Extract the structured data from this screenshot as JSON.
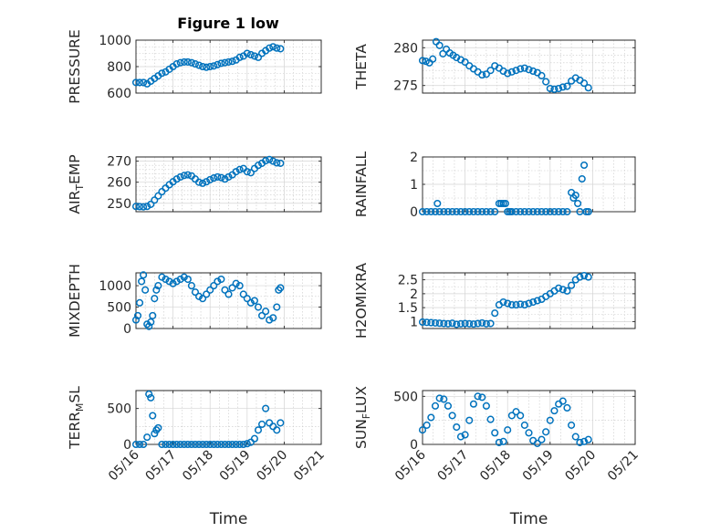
{
  "figure": {
    "title": "Figure 1 low"
  },
  "theme": {
    "marker_color": "#0072BD",
    "axes_color": "#262626"
  },
  "chart_data": [
    {
      "type": "scatter",
      "title": "Figure 1 low",
      "ylabel": "PRESSURE",
      "ylim": [
        600,
        1000
      ],
      "yticks": [
        600,
        800,
        1000
      ],
      "yminor": [
        650,
        700,
        750,
        850,
        900,
        950
      ],
      "xlim": [
        0,
        5
      ],
      "xticks": [
        0,
        1,
        2,
        3,
        4,
        5
      ],
      "xticklabels": [
        "05/16",
        "05/17",
        "05/18",
        "05/19",
        "05/20",
        "05/21"
      ],
      "xlabel": "",
      "grid": true,
      "minor_grid": true,
      "x": [
        0.0,
        0.1,
        0.2,
        0.3,
        0.4,
        0.5,
        0.6,
        0.7,
        0.8,
        0.9,
        1.0,
        1.1,
        1.2,
        1.3,
        1.4,
        1.5,
        1.6,
        1.7,
        1.8,
        1.9,
        2.0,
        2.1,
        2.2,
        2.3,
        2.4,
        2.5,
        2.6,
        2.7,
        2.8,
        2.9,
        3.0,
        3.1,
        3.2,
        3.3,
        3.4,
        3.5,
        3.6,
        3.7,
        3.8,
        3.9
      ],
      "y": [
        680,
        680,
        680,
        670,
        690,
        710,
        730,
        750,
        760,
        780,
        800,
        820,
        830,
        835,
        835,
        830,
        820,
        810,
        800,
        795,
        800,
        805,
        815,
        825,
        830,
        835,
        840,
        850,
        870,
        880,
        900,
        890,
        880,
        870,
        900,
        920,
        940,
        950,
        940,
        935
      ]
    },
    {
      "type": "scatter",
      "ylabel": "THETA",
      "ylim": [
        274,
        281
      ],
      "yticks": [
        275,
        280
      ],
      "yminor": [
        276,
        277,
        278,
        279
      ],
      "xlim": [
        0,
        5
      ],
      "xticks": [
        0,
        1,
        2,
        3,
        4,
        5
      ],
      "xticklabels": [
        "05/16",
        "05/17",
        "05/18",
        "05/19",
        "05/20",
        "05/21"
      ],
      "xlabel": "",
      "grid": true,
      "minor_grid": true,
      "x": [
        0.0,
        0.08,
        0.16,
        0.24,
        0.32,
        0.4,
        0.48,
        0.56,
        0.64,
        0.72,
        0.8,
        0.9,
        1.0,
        1.1,
        1.2,
        1.3,
        1.4,
        1.5,
        1.6,
        1.7,
        1.8,
        1.9,
        2.0,
        2.1,
        2.2,
        2.3,
        2.4,
        2.5,
        2.6,
        2.7,
        2.8,
        2.9,
        3.0,
        3.1,
        3.2,
        3.3,
        3.4,
        3.5,
        3.6,
        3.7,
        3.8,
        3.9
      ],
      "y": [
        278.3,
        278.2,
        278.0,
        278.5,
        280.8,
        280.3,
        279.2,
        279.8,
        279.3,
        279.0,
        278.7,
        278.4,
        278.1,
        277.6,
        277.2,
        276.8,
        276.4,
        276.5,
        277.0,
        277.6,
        277.3,
        276.9,
        276.6,
        276.8,
        277.0,
        277.2,
        277.3,
        277.1,
        276.9,
        276.7,
        276.3,
        275.5,
        274.6,
        274.5,
        274.6,
        274.8,
        274.9,
        275.6,
        276.0,
        275.7,
        275.3,
        274.7
      ]
    },
    {
      "type": "scatter",
      "ylabel": "AIR_TEMP",
      "ylim": [
        246,
        272
      ],
      "yticks": [
        250,
        260,
        270
      ],
      "yminor": [
        252,
        254,
        256,
        258,
        262,
        264,
        266,
        268
      ],
      "xlim": [
        0,
        5
      ],
      "xticks": [
        0,
        1,
        2,
        3,
        4,
        5
      ],
      "xticklabels": [
        "05/16",
        "05/17",
        "05/18",
        "05/19",
        "05/20",
        "05/21"
      ],
      "xlabel": "",
      "grid": true,
      "minor_grid": true,
      "x": [
        0.0,
        0.1,
        0.2,
        0.3,
        0.4,
        0.5,
        0.6,
        0.7,
        0.8,
        0.9,
        1.0,
        1.1,
        1.2,
        1.3,
        1.4,
        1.5,
        1.6,
        1.7,
        1.8,
        1.9,
        2.0,
        2.1,
        2.2,
        2.3,
        2.4,
        2.5,
        2.6,
        2.7,
        2.8,
        2.9,
        3.0,
        3.1,
        3.2,
        3.3,
        3.4,
        3.5,
        3.6,
        3.7,
        3.8,
        3.9
      ],
      "y": [
        248.5,
        248.4,
        248.3,
        248.5,
        249.5,
        251.5,
        253.5,
        255.5,
        257.2,
        258.8,
        260.2,
        261.5,
        262.5,
        263.2,
        263.5,
        263.0,
        261.5,
        260.0,
        259.5,
        260.2,
        261.2,
        262.0,
        262.5,
        262.2,
        261.5,
        262.5,
        263.5,
        265.0,
        266.0,
        266.5,
        265.0,
        264.5,
        266.5,
        268.0,
        269.0,
        270.2,
        270.8,
        270.0,
        269.2,
        269.0
      ]
    },
    {
      "type": "scatter",
      "ylabel": "RAINFALL",
      "ylim": [
        0,
        2
      ],
      "yticks": [
        0,
        1,
        2
      ],
      "yminor": [
        0.5,
        1.5
      ],
      "xlim": [
        0,
        5
      ],
      "xticks": [
        0,
        1,
        2,
        3,
        4,
        5
      ],
      "xticklabels": [
        "05/16",
        "05/17",
        "05/18",
        "05/19",
        "05/20",
        "05/21"
      ],
      "xlabel": "",
      "grid": true,
      "minor_grid": true,
      "x": [
        0.0,
        0.1,
        0.2,
        0.3,
        0.35,
        0.4,
        0.5,
        0.6,
        0.7,
        0.8,
        0.9,
        1.0,
        1.1,
        1.2,
        1.3,
        1.4,
        1.5,
        1.6,
        1.7,
        1.8,
        1.85,
        1.9,
        1.95,
        2.0,
        2.05,
        2.1,
        2.2,
        2.3,
        2.4,
        2.5,
        2.6,
        2.7,
        2.8,
        2.9,
        3.0,
        3.1,
        3.2,
        3.3,
        3.4,
        3.5,
        3.55,
        3.6,
        3.65,
        3.7,
        3.75,
        3.8,
        3.85,
        3.9
      ],
      "y": [
        0,
        0,
        0,
        0,
        0.3,
        0,
        0,
        0,
        0,
        0,
        0,
        0,
        0,
        0,
        0,
        0,
        0,
        0,
        0,
        0.3,
        0.3,
        0.3,
        0.3,
        0,
        0,
        0,
        0,
        0,
        0,
        0,
        0,
        0,
        0,
        0,
        0,
        0,
        0,
        0,
        0,
        0.7,
        0.5,
        0.6,
        0.3,
        0,
        1.2,
        1.7,
        0,
        0
      ]
    },
    {
      "type": "scatter",
      "ylabel": "MIXDEPTH",
      "ylim": [
        0,
        1300
      ],
      "yticks": [
        0,
        500,
        1000
      ],
      "yminor": [
        250,
        750
      ],
      "xlim": [
        0,
        5
      ],
      "xticks": [
        0,
        1,
        2,
        3,
        4,
        5
      ],
      "xticklabels": [
        "05/16",
        "05/17",
        "05/18",
        "05/19",
        "05/20",
        "05/21"
      ],
      "xlabel": "",
      "grid": true,
      "minor_grid": true,
      "x": [
        0.0,
        0.05,
        0.1,
        0.15,
        0.2,
        0.25,
        0.3,
        0.35,
        0.4,
        0.45,
        0.5,
        0.55,
        0.6,
        0.7,
        0.8,
        0.9,
        1.0,
        1.1,
        1.2,
        1.3,
        1.4,
        1.5,
        1.6,
        1.7,
        1.8,
        1.9,
        2.0,
        2.1,
        2.2,
        2.3,
        2.4,
        2.5,
        2.6,
        2.7,
        2.8,
        2.9,
        3.0,
        3.1,
        3.2,
        3.3,
        3.4,
        3.5,
        3.6,
        3.7,
        3.8,
        3.85,
        3.9
      ],
      "y": [
        200,
        300,
        600,
        1100,
        1250,
        900,
        100,
        50,
        150,
        300,
        700,
        900,
        1000,
        1200,
        1150,
        1100,
        1050,
        1100,
        1150,
        1200,
        1150,
        1000,
        850,
        750,
        700,
        800,
        900,
        1000,
        1100,
        1150,
        900,
        800,
        950,
        1050,
        1000,
        800,
        700,
        600,
        650,
        500,
        300,
        400,
        200,
        250,
        500,
        900,
        950
      ]
    },
    {
      "type": "scatter",
      "ylabel": "H2OMIXRA",
      "ylim": [
        0.75,
        2.75
      ],
      "yticks": [
        1,
        1.5,
        2,
        2.5
      ],
      "yticklabels": [
        "1",
        "1.5",
        "2",
        "2.5"
      ],
      "yminor": [
        1.25,
        1.75,
        2.25
      ],
      "xlim": [
        0,
        5
      ],
      "xticks": [
        0,
        1,
        2,
        3,
        4,
        5
      ],
      "xticklabels": [
        "05/16",
        "05/17",
        "05/18",
        "05/19",
        "05/20",
        "05/21"
      ],
      "xlabel": "",
      "grid": true,
      "minor_grid": true,
      "x": [
        0.0,
        0.1,
        0.2,
        0.3,
        0.4,
        0.5,
        0.6,
        0.7,
        0.8,
        0.9,
        1.0,
        1.1,
        1.2,
        1.3,
        1.4,
        1.5,
        1.6,
        1.7,
        1.8,
        1.9,
        2.0,
        2.1,
        2.2,
        2.3,
        2.4,
        2.5,
        2.6,
        2.7,
        2.8,
        2.9,
        3.0,
        3.1,
        3.2,
        3.3,
        3.4,
        3.5,
        3.6,
        3.7,
        3.8,
        3.9
      ],
      "y": [
        0.98,
        0.97,
        0.96,
        0.95,
        0.94,
        0.93,
        0.92,
        0.94,
        0.9,
        0.92,
        0.93,
        0.92,
        0.91,
        0.93,
        0.95,
        0.92,
        0.93,
        1.3,
        1.6,
        1.7,
        1.65,
        1.6,
        1.6,
        1.62,
        1.6,
        1.65,
        1.7,
        1.75,
        1.8,
        1.9,
        2.0,
        2.1,
        2.2,
        2.15,
        2.1,
        2.3,
        2.5,
        2.6,
        2.65,
        2.6
      ]
    },
    {
      "type": "scatter",
      "ylabel": "TERR_MSL",
      "ylim": [
        0,
        750
      ],
      "yticks": [
        0,
        500
      ],
      "yminor": [
        250
      ],
      "xlim": [
        0,
        5
      ],
      "xticks": [
        0,
        1,
        2,
        3,
        4,
        5
      ],
      "xticklabels": [
        "05/16",
        "05/17",
        "05/18",
        "05/19",
        "05/20",
        "05/21"
      ],
      "xlabel": "Time",
      "grid": true,
      "minor_grid": true,
      "x": [
        0.0,
        0.1,
        0.2,
        0.3,
        0.35,
        0.4,
        0.45,
        0.5,
        0.55,
        0.6,
        0.7,
        0.8,
        0.9,
        1.0,
        1.1,
        1.2,
        1.3,
        1.4,
        1.5,
        1.6,
        1.7,
        1.8,
        1.9,
        2.0,
        2.1,
        2.2,
        2.3,
        2.4,
        2.5,
        2.6,
        2.7,
        2.8,
        2.9,
        3.0,
        3.1,
        3.2,
        3.3,
        3.4,
        3.5,
        3.6,
        3.7,
        3.8,
        3.9
      ],
      "y": [
        0,
        0,
        0,
        100,
        700,
        650,
        400,
        150,
        200,
        230,
        0,
        0,
        0,
        0,
        0,
        0,
        0,
        0,
        0,
        0,
        0,
        0,
        0,
        0,
        0,
        0,
        0,
        0,
        0,
        0,
        0,
        0,
        0,
        10,
        30,
        80,
        200,
        280,
        500,
        300,
        250,
        200,
        300
      ]
    },
    {
      "type": "scatter",
      "ylabel": "SUN_FLUX",
      "ylim": [
        0,
        560
      ],
      "yticks": [
        0,
        500
      ],
      "yminor": [
        250
      ],
      "xlim": [
        0,
        5
      ],
      "xticks": [
        0,
        1,
        2,
        3,
        4,
        5
      ],
      "xticklabels": [
        "05/16",
        "05/17",
        "05/18",
        "05/19",
        "05/20",
        "05/21"
      ],
      "xlabel": "Time",
      "grid": true,
      "minor_grid": true,
      "x": [
        0.0,
        0.1,
        0.2,
        0.3,
        0.4,
        0.5,
        0.6,
        0.7,
        0.8,
        0.9,
        1.0,
        1.1,
        1.2,
        1.3,
        1.4,
        1.5,
        1.6,
        1.7,
        1.8,
        1.9,
        2.0,
        2.1,
        2.2,
        2.3,
        2.4,
        2.5,
        2.6,
        2.7,
        2.8,
        2.9,
        3.0,
        3.1,
        3.2,
        3.3,
        3.4,
        3.5,
        3.6,
        3.7,
        3.8,
        3.9
      ],
      "y": [
        150,
        200,
        280,
        400,
        480,
        470,
        400,
        300,
        180,
        80,
        100,
        250,
        420,
        500,
        490,
        400,
        260,
        120,
        20,
        30,
        150,
        300,
        340,
        300,
        200,
        120,
        40,
        10,
        50,
        130,
        250,
        350,
        420,
        450,
        380,
        200,
        80,
        20,
        30,
        50
      ]
    }
  ]
}
